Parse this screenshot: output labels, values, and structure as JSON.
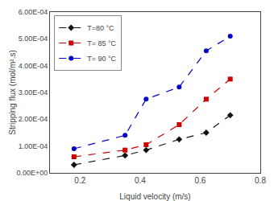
{
  "chart_data": {
    "type": "line",
    "x_label": "Liquid velocity (m/s)",
    "y_label": "Stripping flux (mol/m².s)",
    "x": [
      0.18,
      0.35,
      0.42,
      0.53,
      0.62,
      0.7
    ],
    "series": [
      {
        "name": "T=80 °C",
        "color": "#111111",
        "marker": "diamond",
        "line_style": "dashed",
        "values": [
          3e-05,
          6.5e-05,
          8.5e-05,
          0.000125,
          0.00015,
          0.000215
        ]
      },
      {
        "name": "T= 85 °C",
        "color": "#cc0000",
        "marker": "square",
        "line_style": "dashed",
        "values": [
          6e-05,
          8.5e-05,
          0.000105,
          0.00018,
          0.000275,
          0.00035
        ]
      },
      {
        "name": "T= 90 °C",
        "color": "#0000cc",
        "marker": "circle",
        "line_style": "dashed",
        "values": [
          9e-05,
          0.00014,
          0.000275,
          0.00032,
          0.000455,
          0.00051
        ]
      }
    ],
    "xlim": [
      0.1,
      0.8
    ],
    "xticks": [
      0.2,
      0.4,
      0.6,
      0.8
    ],
    "ylim": [
      0.0,
      0.0006
    ],
    "yticks": [
      {
        "value": 0.0,
        "label": "0.00E+00"
      },
      {
        "value": 0.0001,
        "label": "1.00E-04"
      },
      {
        "value": 0.0002,
        "label": "2.00E-04"
      },
      {
        "value": 0.0003,
        "label": "3.00E-04"
      },
      {
        "value": 0.0004,
        "label": "4.00E-04"
      },
      {
        "value": 0.0005,
        "label": "5.00E-04"
      },
      {
        "value": 0.0006,
        "label": "6.00E-04"
      }
    ],
    "grid": false,
    "legend": "upper left"
  }
}
